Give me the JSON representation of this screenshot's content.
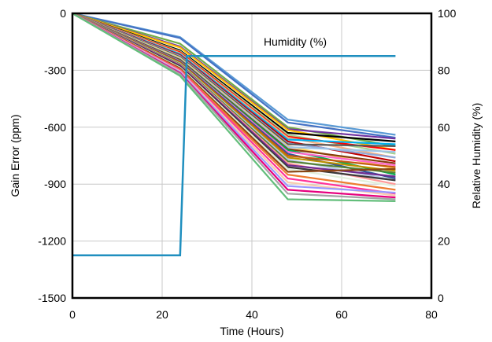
{
  "chart_data": {
    "type": "line",
    "xlabel": "Time (Hours)",
    "ylabel": "Gain Error (ppm)",
    "y2label": "Relative Humidity (%)",
    "xlim": [
      0,
      80
    ],
    "ylim": [
      -1500,
      0
    ],
    "y2lim": [
      0,
      100
    ],
    "xticks": [
      0,
      20,
      40,
      60,
      80
    ],
    "yticks": [
      -1500,
      -1200,
      -900,
      -600,
      -300,
      0
    ],
    "y2ticks": [
      0,
      20,
      40,
      60,
      80,
      100
    ],
    "grid": true,
    "annotation": "Humidity (%)",
    "gain_x": [
      0,
      24,
      48,
      72
    ],
    "series": [
      {
        "color": "#5b9bd5",
        "values": [
          0,
          -125,
          -560,
          -640
        ]
      },
      {
        "color": "#4472c4",
        "values": [
          0,
          -130,
          -575,
          -655
        ]
      },
      {
        "color": "#70ad47",
        "values": [
          0,
          -160,
          -600,
          -700
        ]
      },
      {
        "color": "#7030a0",
        "values": [
          0,
          -175,
          -610,
          -660
        ]
      },
      {
        "color": "#ffc000",
        "values": [
          0,
          -180,
          -615,
          -720
        ]
      },
      {
        "color": "#000000",
        "values": [
          0,
          -195,
          -630,
          -675
        ]
      },
      {
        "color": "#a9d18e",
        "values": [
          0,
          -200,
          -640,
          -740
        ]
      },
      {
        "color": "#ff0000",
        "values": [
          0,
          -205,
          -650,
          -720
        ]
      },
      {
        "color": "#f4b183",
        "values": [
          0,
          -210,
          -655,
          -760
        ]
      },
      {
        "color": "#00b0f0",
        "values": [
          0,
          -215,
          -665,
          -690
        ]
      },
      {
        "color": "#c00000",
        "values": [
          0,
          -220,
          -675,
          -780
        ]
      },
      {
        "color": "#8faadc",
        "values": [
          0,
          -225,
          -685,
          -760
        ]
      },
      {
        "color": "#595959",
        "values": [
          0,
          -230,
          -690,
          -700
        ]
      },
      {
        "color": "#ffd966",
        "values": [
          0,
          -235,
          -700,
          -820
        ]
      },
      {
        "color": "#9dc3e6",
        "values": [
          0,
          -240,
          -705,
          -730
        ]
      },
      {
        "color": "#843c0c",
        "values": [
          0,
          -245,
          -715,
          -790
        ]
      },
      {
        "color": "#00b050",
        "values": [
          0,
          -250,
          -720,
          -850
        ]
      },
      {
        "color": "#ff66cc",
        "values": [
          0,
          -252,
          -730,
          -800
        ]
      },
      {
        "color": "#2f5597",
        "values": [
          0,
          -255,
          -740,
          -870
        ]
      },
      {
        "color": "#c55a11",
        "values": [
          0,
          -258,
          -750,
          -810
        ]
      },
      {
        "color": "#bf9000",
        "values": [
          0,
          -262,
          -760,
          -830
        ]
      },
      {
        "color": "#b4c7e7",
        "values": [
          0,
          -265,
          -770,
          -880
        ]
      },
      {
        "color": "#548235",
        "values": [
          0,
          -268,
          -780,
          -840
        ]
      },
      {
        "color": "#ff9999",
        "values": [
          0,
          -272,
          -790,
          -900
        ]
      },
      {
        "color": "#6f2c91",
        "values": [
          0,
          -275,
          -800,
          -860
        ]
      },
      {
        "color": "#3a3a3a",
        "values": [
          0,
          -280,
          -810,
          -880
        ]
      },
      {
        "color": "#e2efda",
        "values": [
          0,
          -285,
          -820,
          -910
        ]
      },
      {
        "color": "#8b4513",
        "values": [
          0,
          -290,
          -835,
          -820
        ]
      },
      {
        "color": "#ed7d31",
        "values": [
          0,
          -295,
          -850,
          -930
        ]
      },
      {
        "color": "#ff3399",
        "values": [
          0,
          -300,
          -870,
          -950
        ]
      },
      {
        "color": "#f8cbad",
        "values": [
          0,
          -305,
          -890,
          -960
        ]
      },
      {
        "color": "#9999ff",
        "values": [
          0,
          -310,
          -910,
          -945
        ]
      },
      {
        "color": "#e6007e",
        "values": [
          0,
          -315,
          -930,
          -970
        ]
      },
      {
        "color": "#a5a5a5",
        "values": [
          0,
          -320,
          -950,
          -980
        ]
      },
      {
        "color": "#63be7b",
        "values": [
          0,
          -330,
          -980,
          -990
        ]
      }
    ],
    "humidity": {
      "color": "#1f8fbf",
      "x": [
        0,
        24,
        25.5,
        72
      ],
      "values": [
        15,
        15,
        85,
        85
      ]
    }
  }
}
